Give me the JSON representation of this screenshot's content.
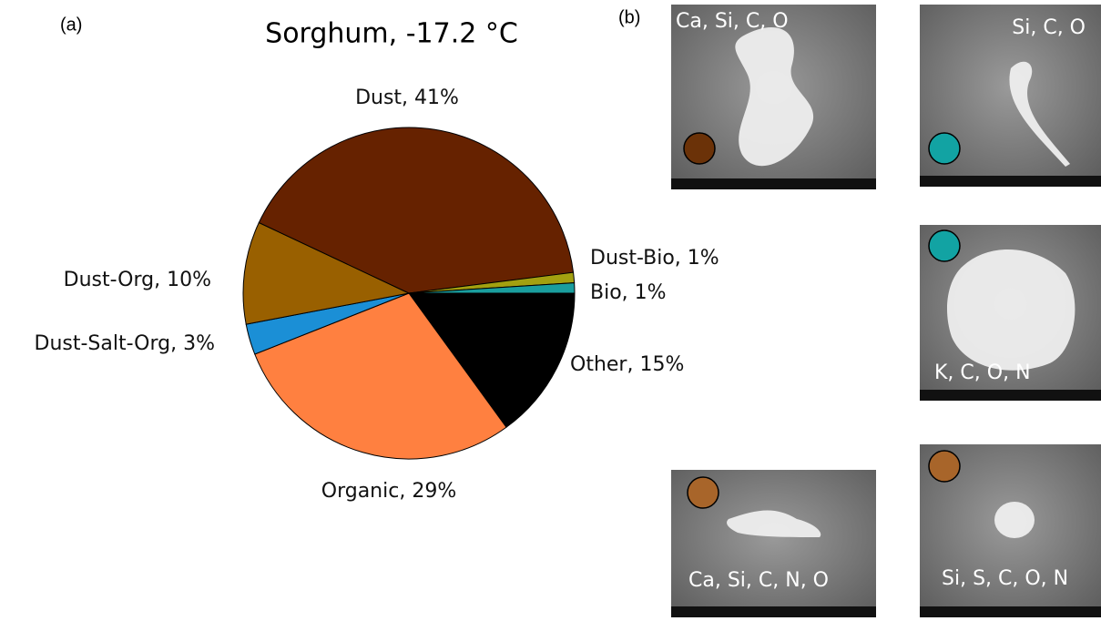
{
  "panel_labels": [
    "(a)",
    "(b)"
  ],
  "chart_data": {
    "type": "pie",
    "title": "Sorghum, -17.2 °C",
    "categories": [
      "Other",
      "Organic",
      "Dust-Salt-Org",
      "Dust-Org",
      "Dust",
      "Dust-Bio",
      "Bio"
    ],
    "values": [
      15,
      29,
      3,
      10,
      41,
      1,
      1
    ],
    "value_labels": [
      "Other, 15%",
      "Organic, 29%",
      "Dust-Salt-Org, 3%",
      "Dust-Org, 10%",
      "Dust, 41%",
      "Dust-Bio, 1%",
      "Bio, 1%"
    ],
    "colors": [
      "#000000",
      "#ff8040",
      "#1b8fd6",
      "#996000",
      "#662200",
      "#a3a010",
      "#1a9e9e"
    ],
    "start_angle": 0,
    "direction": "clockwise"
  },
  "sem_images": [
    {
      "label": "Ca, Si, C, O",
      "color": "#6b3208"
    },
    {
      "label": "Si, C, O",
      "color": "#12a3a3"
    },
    {
      "label": "K, C, O, N",
      "color": "#12a3a3"
    },
    {
      "label": "Ca, Si, C, N, O",
      "color": "#a8652a"
    },
    {
      "label": "Si, S, C, O, N",
      "color": "#a8652a"
    }
  ]
}
